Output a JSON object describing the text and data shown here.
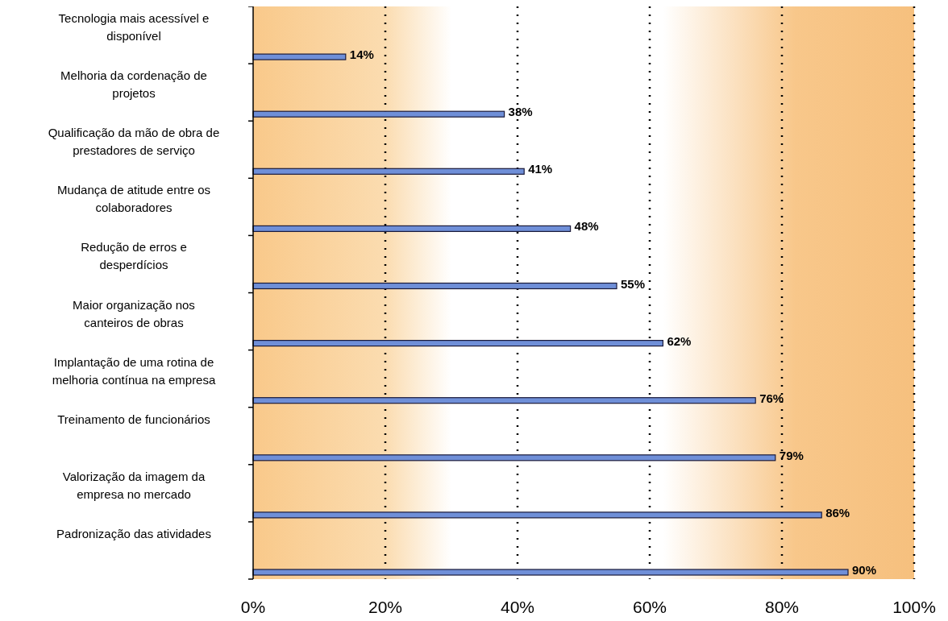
{
  "chart_data": {
    "type": "bar",
    "orientation": "horizontal",
    "categories": [
      "Tecnologia mais acessível e disponível",
      "Melhoria da cordenação de projetos",
      "Qualificação da mão de obra de prestadores de serviço",
      "Mudança de atitude entre os colaboradores",
      "Redução de erros e desperdícios",
      "Maior organização nos canteiros de obras",
      "Implantação de uma rotina de melhoria contínua na empresa",
      "Treinamento de funcionários",
      "Valorização da imagem da empresa no mercado",
      "Padronização das atividades"
    ],
    "values": [
      14,
      38,
      41,
      48,
      55,
      62,
      76,
      79,
      86,
      90
    ],
    "value_labels": [
      "14%",
      "38%",
      "41%",
      "48%",
      "55%",
      "62%",
      "76%",
      "79%",
      "86%",
      "90%"
    ],
    "color": "#6f8fd8",
    "xlim": [
      0,
      100
    ],
    "xticks": [
      {
        "value": 0,
        "label": "0%"
      },
      {
        "value": 20,
        "label": "20%"
      },
      {
        "value": 40,
        "label": "40%"
      },
      {
        "value": 60,
        "label": "60%"
      },
      {
        "value": 80,
        "label": "80%"
      },
      {
        "value": 100,
        "label": "100%"
      }
    ],
    "grid": "x"
  }
}
